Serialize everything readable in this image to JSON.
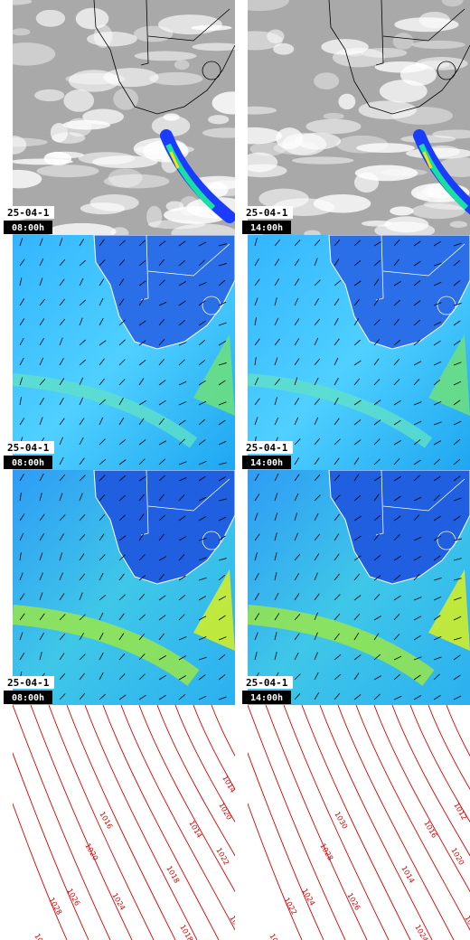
{
  "rows": [
    {
      "name": "satellite",
      "panels": [
        {
          "date": "25-04-1",
          "time": "08:00h"
        },
        {
          "date": "25-04-1",
          "time": "14:00h"
        }
      ]
    },
    {
      "name": "wind-low",
      "panels": [
        {
          "date": "25-04-1",
          "time": "08:00h"
        },
        {
          "date": "25-04-1",
          "time": "14:00h"
        }
      ]
    },
    {
      "name": "wind-high",
      "panels": [
        {
          "date": "25-04-1",
          "time": "08:00h"
        },
        {
          "date": "25-04-1",
          "time": "14:00h"
        }
      ]
    },
    {
      "name": "pressure",
      "panels": [
        {
          "contour_labels": [
            "1016",
            "1020",
            "1024",
            "1026",
            "1028",
            "1022",
            "1014",
            "1018",
            "1020",
            "1022",
            "1018",
            "1016",
            "1014"
          ]
        },
        {
          "contour_labels": [
            "1030",
            "1028",
            "1026",
            "1024",
            "1022",
            "1018",
            "1016",
            "1014",
            "1012",
            "1020",
            "1024",
            "1018"
          ]
        }
      ]
    }
  ]
}
